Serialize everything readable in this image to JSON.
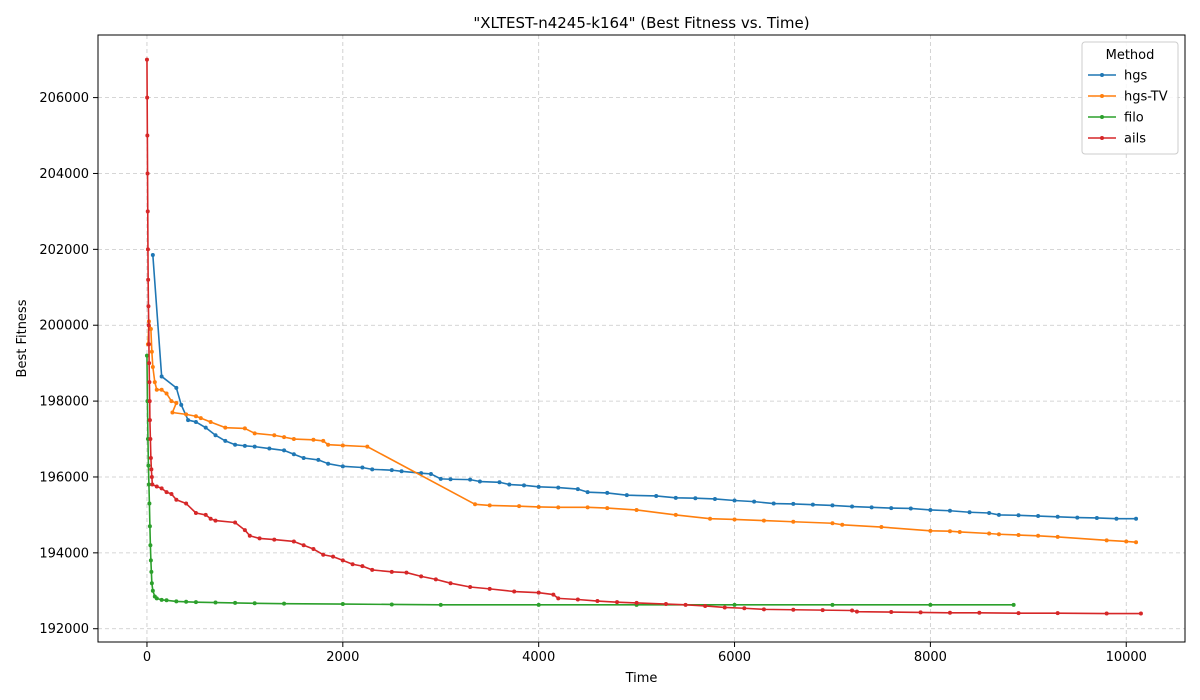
{
  "chart_data": {
    "type": "line",
    "title": "\"XLTEST-n4245-k164\" (Best Fitness vs. Time)",
    "xlabel": "Time",
    "ylabel": "Best Fitness",
    "xlim": [
      -500,
      10600
    ],
    "ylim": [
      191650,
      207650
    ],
    "xticks": [
      0,
      2000,
      4000,
      6000,
      8000,
      10000
    ],
    "yticks": [
      192000,
      194000,
      196000,
      198000,
      200000,
      202000,
      204000,
      206000
    ],
    "grid": true,
    "legend": {
      "title": "Method",
      "position": "top-right"
    },
    "series": [
      {
        "name": "hgs",
        "color": "#1f77b4",
        "points": [
          [
            60,
            201850
          ],
          [
            150,
            198650
          ],
          [
            300,
            198350
          ],
          [
            350,
            197900
          ],
          [
            420,
            197500
          ],
          [
            500,
            197450
          ],
          [
            600,
            197300
          ],
          [
            700,
            197100
          ],
          [
            800,
            196950
          ],
          [
            900,
            196850
          ],
          [
            1000,
            196820
          ],
          [
            1100,
            196800
          ],
          [
            1250,
            196750
          ],
          [
            1400,
            196700
          ],
          [
            1500,
            196600
          ],
          [
            1600,
            196500
          ],
          [
            1750,
            196450
          ],
          [
            1850,
            196350
          ],
          [
            2000,
            196280
          ],
          [
            2200,
            196250
          ],
          [
            2300,
            196200
          ],
          [
            2500,
            196180
          ],
          [
            2600,
            196150
          ],
          [
            2800,
            196100
          ],
          [
            2900,
            196080
          ],
          [
            3000,
            195950
          ],
          [
            3100,
            195940
          ],
          [
            3300,
            195930
          ],
          [
            3400,
            195880
          ],
          [
            3600,
            195860
          ],
          [
            3700,
            195800
          ],
          [
            3850,
            195780
          ],
          [
            4000,
            195740
          ],
          [
            4200,
            195720
          ],
          [
            4400,
            195680
          ],
          [
            4500,
            195600
          ],
          [
            4700,
            195580
          ],
          [
            4900,
            195520
          ],
          [
            5200,
            195500
          ],
          [
            5400,
            195450
          ],
          [
            5600,
            195440
          ],
          [
            5800,
            195420
          ],
          [
            6000,
            195380
          ],
          [
            6200,
            195350
          ],
          [
            6400,
            195300
          ],
          [
            6600,
            195290
          ],
          [
            6800,
            195270
          ],
          [
            7000,
            195250
          ],
          [
            7200,
            195220
          ],
          [
            7400,
            195200
          ],
          [
            7600,
            195180
          ],
          [
            7800,
            195170
          ],
          [
            8000,
            195130
          ],
          [
            8200,
            195110
          ],
          [
            8400,
            195070
          ],
          [
            8600,
            195050
          ],
          [
            8700,
            195000
          ],
          [
            8900,
            194990
          ],
          [
            9100,
            194970
          ],
          [
            9300,
            194950
          ],
          [
            9500,
            194930
          ],
          [
            9700,
            194920
          ],
          [
            9900,
            194900
          ],
          [
            10100,
            194900
          ]
        ]
      },
      {
        "name": "hgs-TV",
        "color": "#ff7f0e",
        "points": [
          [
            10,
            199500
          ],
          [
            20,
            200100
          ],
          [
            40,
            199900
          ],
          [
            50,
            199300
          ],
          [
            60,
            198900
          ],
          [
            80,
            198500
          ],
          [
            100,
            198300
          ],
          [
            150,
            198300
          ],
          [
            200,
            198200
          ],
          [
            250,
            198000
          ],
          [
            300,
            197950
          ],
          [
            260,
            197700
          ],
          [
            400,
            197650
          ],
          [
            500,
            197600
          ],
          [
            550,
            197550
          ],
          [
            650,
            197450
          ],
          [
            800,
            197300
          ],
          [
            1000,
            197280
          ],
          [
            1100,
            197150
          ],
          [
            1300,
            197100
          ],
          [
            1400,
            197050
          ],
          [
            1500,
            197000
          ],
          [
            1700,
            196980
          ],
          [
            1800,
            196950
          ],
          [
            1850,
            196850
          ],
          [
            2000,
            196830
          ],
          [
            2250,
            196800
          ],
          [
            3350,
            195280
          ],
          [
            3500,
            195250
          ],
          [
            3800,
            195230
          ],
          [
            4000,
            195210
          ],
          [
            4200,
            195200
          ],
          [
            4500,
            195200
          ],
          [
            4700,
            195180
          ],
          [
            5000,
            195130
          ],
          [
            5400,
            195000
          ],
          [
            5750,
            194900
          ],
          [
            6000,
            194880
          ],
          [
            6300,
            194850
          ],
          [
            6600,
            194820
          ],
          [
            7000,
            194780
          ],
          [
            7100,
            194740
          ],
          [
            7500,
            194680
          ],
          [
            8000,
            194580
          ],
          [
            8200,
            194570
          ],
          [
            8300,
            194550
          ],
          [
            8600,
            194510
          ],
          [
            8700,
            194490
          ],
          [
            8900,
            194470
          ],
          [
            9100,
            194450
          ],
          [
            9300,
            194420
          ],
          [
            9800,
            194330
          ],
          [
            10000,
            194300
          ],
          [
            10100,
            194280
          ]
        ]
      },
      {
        "name": "filo",
        "color": "#2ca02c",
        "points": [
          [
            0,
            199200
          ],
          [
            5,
            198000
          ],
          [
            10,
            197000
          ],
          [
            15,
            196300
          ],
          [
            20,
            195800
          ],
          [
            25,
            195300
          ],
          [
            30,
            194700
          ],
          [
            35,
            194200
          ],
          [
            40,
            193800
          ],
          [
            45,
            193500
          ],
          [
            50,
            193200
          ],
          [
            60,
            193000
          ],
          [
            80,
            192850
          ],
          [
            100,
            192800
          ],
          [
            150,
            192760
          ],
          [
            200,
            192750
          ],
          [
            300,
            192720
          ],
          [
            400,
            192710
          ],
          [
            500,
            192700
          ],
          [
            700,
            192690
          ],
          [
            900,
            192680
          ],
          [
            1100,
            192670
          ],
          [
            1400,
            192660
          ],
          [
            2000,
            192650
          ],
          [
            2500,
            192640
          ],
          [
            3000,
            192630
          ],
          [
            4000,
            192630
          ],
          [
            5000,
            192630
          ],
          [
            6000,
            192630
          ],
          [
            7000,
            192630
          ],
          [
            8000,
            192630
          ],
          [
            8850,
            192630
          ]
        ]
      },
      {
        "name": "ails",
        "color": "#d62728",
        "points": [
          [
            0,
            207000
          ],
          [
            2,
            206000
          ],
          [
            4,
            205000
          ],
          [
            6,
            204000
          ],
          [
            8,
            203000
          ],
          [
            10,
            202000
          ],
          [
            12,
            201200
          ],
          [
            15,
            200500
          ],
          [
            18,
            200000
          ],
          [
            20,
            199500
          ],
          [
            22,
            199000
          ],
          [
            25,
            198500
          ],
          [
            28,
            198000
          ],
          [
            30,
            197500
          ],
          [
            35,
            197000
          ],
          [
            40,
            196500
          ],
          [
            45,
            196200
          ],
          [
            50,
            196000
          ],
          [
            55,
            195800
          ],
          [
            100,
            195750
          ],
          [
            150,
            195700
          ],
          [
            200,
            195600
          ],
          [
            250,
            195550
          ],
          [
            300,
            195400
          ],
          [
            400,
            195300
          ],
          [
            500,
            195050
          ],
          [
            600,
            195000
          ],
          [
            650,
            194900
          ],
          [
            700,
            194850
          ],
          [
            900,
            194800
          ],
          [
            1000,
            194600
          ],
          [
            1050,
            194450
          ],
          [
            1150,
            194380
          ],
          [
            1300,
            194350
          ],
          [
            1500,
            194300
          ],
          [
            1600,
            194200
          ],
          [
            1700,
            194100
          ],
          [
            1800,
            193950
          ],
          [
            1900,
            193900
          ],
          [
            2000,
            193800
          ],
          [
            2100,
            193700
          ],
          [
            2200,
            193650
          ],
          [
            2300,
            193550
          ],
          [
            2500,
            193500
          ],
          [
            2650,
            193480
          ],
          [
            2800,
            193380
          ],
          [
            2950,
            193300
          ],
          [
            3100,
            193200
          ],
          [
            3300,
            193100
          ],
          [
            3500,
            193050
          ],
          [
            3750,
            192980
          ],
          [
            4000,
            192950
          ],
          [
            4150,
            192900
          ],
          [
            4200,
            192800
          ],
          [
            4400,
            192770
          ],
          [
            4600,
            192730
          ],
          [
            4800,
            192700
          ],
          [
            5000,
            192680
          ],
          [
            5300,
            192650
          ],
          [
            5500,
            192630
          ],
          [
            5700,
            192600
          ],
          [
            5900,
            192560
          ],
          [
            6100,
            192540
          ],
          [
            6300,
            192510
          ],
          [
            6600,
            192500
          ],
          [
            6900,
            192490
          ],
          [
            7200,
            192480
          ],
          [
            7250,
            192450
          ],
          [
            7600,
            192440
          ],
          [
            7900,
            192430
          ],
          [
            8200,
            192420
          ],
          [
            8500,
            192420
          ],
          [
            8900,
            192410
          ],
          [
            9300,
            192410
          ],
          [
            9800,
            192400
          ],
          [
            10150,
            192400
          ]
        ]
      }
    ]
  }
}
